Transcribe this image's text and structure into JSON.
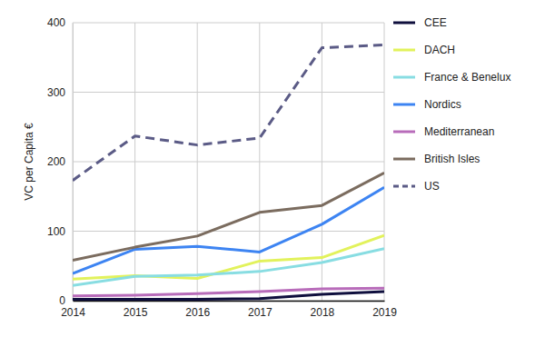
{
  "chart_data": {
    "type": "line",
    "y_label": "VC per Capita €",
    "x": [
      2014,
      2015,
      2016,
      2017,
      2018,
      2019
    ],
    "xlim": [
      2014,
      2019
    ],
    "xticks": [
      2014,
      2015,
      2016,
      2017,
      2018,
      2019
    ],
    "ylim": [
      0,
      400
    ],
    "yticks": [
      0,
      100,
      200,
      300,
      400
    ],
    "grid": true,
    "legend": "right",
    "series": [
      {
        "name": "CEE",
        "color": "#0f0f3d",
        "values": [
          2,
          2,
          2,
          3,
          9,
          13
        ]
      },
      {
        "name": "DACH",
        "color": "#e2f25c",
        "values": [
          31,
          36,
          32,
          57,
          62,
          94
        ]
      },
      {
        "name": "France & Benelux",
        "color": "#88dde2",
        "values": [
          22,
          35,
          37,
          42,
          55,
          75
        ]
      },
      {
        "name": "Nordics",
        "color": "#3d84f2",
        "values": [
          39,
          74,
          78,
          70,
          110,
          163
        ]
      },
      {
        "name": "Mediterranean",
        "color": "#b86cba",
        "values": [
          7,
          8,
          10,
          13,
          17,
          18
        ]
      },
      {
        "name": "British Isles",
        "color": "#7b6c5f",
        "values": [
          58,
          77,
          93,
          127,
          137,
          184
        ]
      },
      {
        "name": "US",
        "color": "#5b5b86",
        "values": [
          173,
          237,
          224,
          234,
          364,
          368
        ],
        "line_style": "dashed"
      }
    ]
  }
}
